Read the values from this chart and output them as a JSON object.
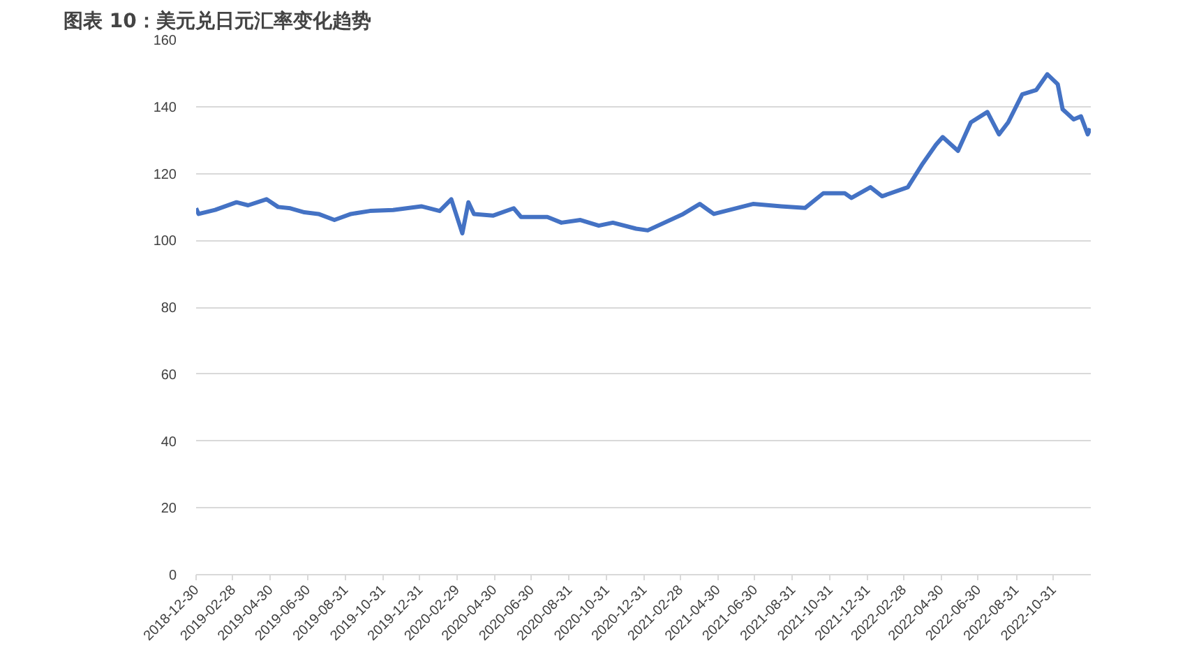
{
  "chart_data": {
    "type": "line",
    "title": "图表 10：美元兑日元汇率变化趋势",
    "x": [
      "2018-12-30",
      "2019-01-03",
      "2019-01-30",
      "2019-03-06",
      "2019-03-25",
      "2019-04-24",
      "2019-05-13",
      "2019-06-02",
      "2019-06-25",
      "2019-07-18",
      "2019-08-13",
      "2019-09-09",
      "2019-10-10",
      "2019-11-17",
      "2020-01-02",
      "2020-02-01",
      "2020-02-20",
      "2020-03-09",
      "2020-03-19",
      "2020-03-28",
      "2020-04-28",
      "2020-06-01",
      "2020-06-13",
      "2020-07-26",
      "2020-08-18",
      "2020-09-18",
      "2020-10-18",
      "2020-11-10",
      "2020-12-18",
      "2021-01-06",
      "2021-03-05",
      "2021-04-01",
      "2021-04-24",
      "2021-06-27",
      "2021-08-12",
      "2021-09-20",
      "2021-10-20",
      "2021-11-24",
      "2021-12-05",
      "2022-01-05",
      "2022-01-24",
      "2022-03-07",
      "2022-03-30",
      "2022-04-22",
      "2022-05-03",
      "2022-05-28",
      "2022-06-18",
      "2022-07-15",
      "2022-08-03",
      "2022-08-18",
      "2022-09-10",
      "2022-10-03",
      "2022-10-21",
      "2022-11-07",
      "2022-11-15",
      "2022-12-03",
      "2022-12-15",
      "2022-12-26",
      "2022-12-30"
    ],
    "series": [
      {
        "color": "#4472c4",
        "values": [
          109.6,
          107.9,
          109.1,
          111.4,
          110.5,
          112.3,
          110.0,
          109.6,
          108.4,
          107.9,
          106.1,
          107.9,
          108.8,
          109.1,
          110.2,
          108.8,
          112.3,
          102.1,
          111.4,
          107.9,
          107.4,
          109.6,
          107.0,
          107.0,
          105.3,
          106.1,
          104.4,
          105.3,
          103.5,
          103.0,
          107.9,
          110.9,
          107.9,
          110.9,
          110.2,
          109.7,
          114.1,
          114.1,
          112.7,
          115.9,
          113.2,
          115.9,
          122.6,
          128.6,
          130.9,
          126.8,
          135.3,
          138.4,
          131.7,
          135.3,
          143.7,
          145.0,
          149.7,
          146.7,
          139.2,
          136.2,
          137.1,
          131.7,
          133.5
        ]
      }
    ],
    "xlim": [
      "2018-12-30",
      "2022-12-31"
    ],
    "xticks": [
      "2018-12-30",
      "2019-02-28",
      "2019-04-30",
      "2019-06-30",
      "2019-08-31",
      "2019-10-31",
      "2019-12-31",
      "2020-02-29",
      "2020-04-30",
      "2020-06-30",
      "2020-08-31",
      "2020-10-31",
      "2020-12-31",
      "2021-02-28",
      "2021-04-30",
      "2021-06-30",
      "2021-08-31",
      "2021-10-31",
      "2021-12-31",
      "2022-02-28",
      "2022-04-30",
      "2022-06-30",
      "2022-08-31",
      "2022-10-31"
    ],
    "ylim": [
      0,
      160
    ],
    "yticks": [
      0,
      20,
      40,
      60,
      80,
      100,
      120,
      140,
      160
    ],
    "grid": "y",
    "marker": "none",
    "line_style": "solid"
  }
}
